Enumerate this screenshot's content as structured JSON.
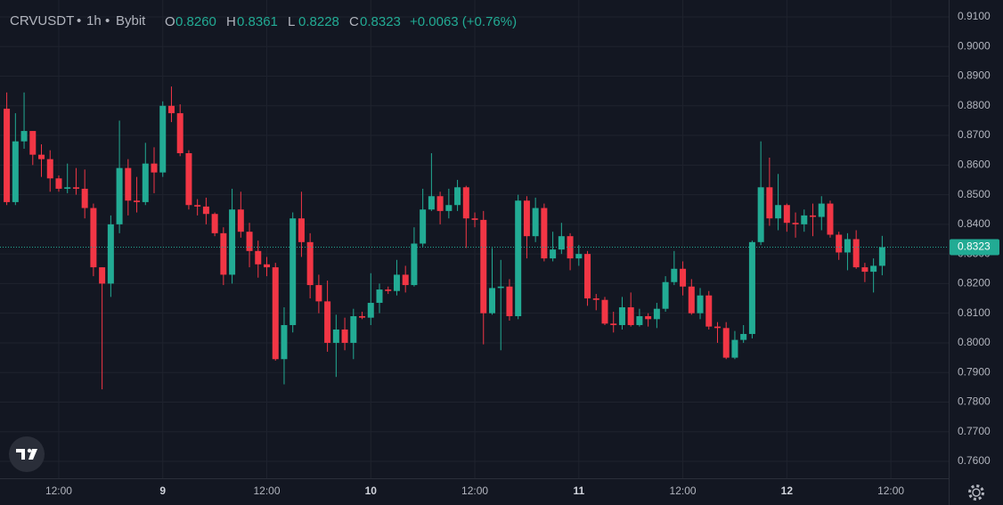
{
  "header": {
    "symbol": "CRVUSDT",
    "interval": "1h",
    "exchange": "Bybit",
    "ohlc": [
      {
        "key": "O",
        "value": "0.8260"
      },
      {
        "key": "H",
        "value": "0.8361"
      },
      {
        "key": "L",
        "value": "0.8228"
      },
      {
        "key": "C",
        "value": "0.8323"
      }
    ],
    "change": "+0.0063 (+0.76%)"
  },
  "chart_data": {
    "type": "candlestick",
    "x": [
      0,
      1,
      2,
      3,
      4,
      5,
      6,
      7,
      8,
      9,
      10,
      11,
      12,
      13,
      14,
      15,
      16,
      17,
      18,
      19,
      20,
      21,
      22,
      23,
      24,
      25,
      26,
      27,
      28,
      29,
      30,
      31,
      32,
      33,
      34,
      35,
      36,
      37,
      38,
      39,
      40,
      41,
      42,
      43,
      44,
      45,
      46,
      47,
      48,
      49,
      50,
      51,
      52,
      53,
      54,
      55,
      56,
      57,
      58,
      59,
      60,
      61,
      62,
      63,
      64,
      65,
      66,
      67,
      68,
      69,
      70,
      71,
      72,
      73,
      74,
      75,
      76,
      77,
      78,
      79,
      80,
      81,
      82,
      83,
      84,
      85,
      86,
      87,
      88,
      89,
      90,
      91,
      92,
      93,
      94,
      95,
      96,
      97,
      98,
      99,
      100,
      101
    ],
    "open": [
      0.879,
      0.8475,
      0.868,
      0.8715,
      0.8635,
      0.862,
      0.8555,
      0.852,
      0.8525,
      0.852,
      0.8455,
      0.8255,
      0.82,
      0.84,
      0.859,
      0.848,
      0.8475,
      0.8605,
      0.8575,
      0.88,
      0.8775,
      0.864,
      0.8465,
      0.846,
      0.8435,
      0.837,
      0.823,
      0.845,
      0.8375,
      0.831,
      0.8265,
      0.8255,
      0.7945,
      0.806,
      0.842,
      0.834,
      0.8195,
      0.814,
      0.8,
      0.8045,
      0.8,
      0.809,
      0.8085,
      0.8135,
      0.818,
      0.8175,
      0.823,
      0.8195,
      0.8335,
      0.845,
      0.8495,
      0.8445,
      0.8465,
      0.8525,
      0.842,
      0.8415,
      0.81,
      0.8185,
      0.819,
      0.809,
      0.848,
      0.836,
      0.8455,
      0.8285,
      0.8315,
      0.836,
      0.8285,
      0.83,
      0.815,
      0.8145,
      0.8065,
      0.806,
      0.812,
      0.806,
      0.809,
      0.808,
      0.8115,
      0.8205,
      0.825,
      0.819,
      0.81,
      0.816,
      0.8055,
      0.805,
      0.795,
      0.801,
      0.803,
      0.834,
      0.8525,
      0.842,
      0.8465,
      0.8405,
      0.84,
      0.843,
      0.8425,
      0.847,
      0.8365,
      0.8305,
      0.835,
      0.8255,
      0.824,
      0.826
    ],
    "high": [
      0.8845,
      0.8775,
      0.8845,
      0.8715,
      0.867,
      0.865,
      0.8565,
      0.8605,
      0.859,
      0.8585,
      0.847,
      0.8255,
      0.843,
      0.875,
      0.862,
      0.856,
      0.8675,
      0.866,
      0.8815,
      0.8865,
      0.8805,
      0.865,
      0.8485,
      0.849,
      0.844,
      0.839,
      0.852,
      0.851,
      0.8405,
      0.8345,
      0.829,
      0.827,
      0.812,
      0.844,
      0.851,
      0.837,
      0.823,
      0.821,
      0.8095,
      0.8085,
      0.8115,
      0.8105,
      0.8235,
      0.82,
      0.819,
      0.828,
      0.826,
      0.839,
      0.852,
      0.864,
      0.851,
      0.852,
      0.855,
      0.853,
      0.844,
      0.8445,
      0.832,
      0.828,
      0.8215,
      0.85,
      0.8495,
      0.849,
      0.847,
      0.8375,
      0.8405,
      0.837,
      0.833,
      0.831,
      0.8165,
      0.8155,
      0.8105,
      0.8155,
      0.817,
      0.8115,
      0.81,
      0.8135,
      0.8225,
      0.831,
      0.8275,
      0.8215,
      0.8185,
      0.8175,
      0.807,
      0.807,
      0.804,
      0.806,
      0.8345,
      0.868,
      0.8625,
      0.857,
      0.847,
      0.844,
      0.845,
      0.847,
      0.8495,
      0.848,
      0.8375,
      0.837,
      0.838,
      0.827,
      0.8285,
      0.8361
    ],
    "low": [
      0.8465,
      0.8465,
      0.8655,
      0.86,
      0.856,
      0.851,
      0.851,
      0.8505,
      0.85,
      0.842,
      0.8225,
      0.7843,
      0.8155,
      0.837,
      0.843,
      0.844,
      0.8465,
      0.8505,
      0.856,
      0.8745,
      0.863,
      0.845,
      0.843,
      0.84,
      0.836,
      0.8195,
      0.82,
      0.8355,
      0.8255,
      0.822,
      0.8225,
      0.794,
      0.786,
      0.8035,
      0.829,
      0.815,
      0.81,
      0.797,
      0.7885,
      0.7975,
      0.7945,
      0.808,
      0.806,
      0.81,
      0.8165,
      0.816,
      0.817,
      0.819,
      0.8325,
      0.8445,
      0.84,
      0.842,
      0.8445,
      0.832,
      0.839,
      0.7995,
      0.8095,
      0.7975,
      0.8075,
      0.808,
      0.8285,
      0.834,
      0.8275,
      0.8275,
      0.83,
      0.8245,
      0.826,
      0.8125,
      0.811,
      0.806,
      0.8035,
      0.8045,
      0.8055,
      0.8055,
      0.8055,
      0.805,
      0.8105,
      0.8195,
      0.816,
      0.8095,
      0.808,
      0.8045,
      0.8,
      0.7945,
      0.7945,
      0.8,
      0.8015,
      0.833,
      0.8395,
      0.838,
      0.8375,
      0.8355,
      0.8375,
      0.836,
      0.838,
      0.8355,
      0.828,
      0.8245,
      0.825,
      0.8205,
      0.817,
      0.8228
    ],
    "close": [
      0.8475,
      0.868,
      0.8715,
      0.8635,
      0.862,
      0.8555,
      0.852,
      0.8525,
      0.852,
      0.8455,
      0.8255,
      0.82,
      0.84,
      0.859,
      0.848,
      0.8475,
      0.8605,
      0.8575,
      0.88,
      0.8775,
      0.864,
      0.8465,
      0.846,
      0.8435,
      0.837,
      0.823,
      0.845,
      0.8375,
      0.831,
      0.8265,
      0.8255,
      0.7945,
      0.806,
      0.842,
      0.834,
      0.8195,
      0.814,
      0.8,
      0.8045,
      0.8,
      0.809,
      0.8085,
      0.8135,
      0.818,
      0.8175,
      0.823,
      0.8195,
      0.8335,
      0.845,
      0.8495,
      0.8445,
      0.8465,
      0.8525,
      0.842,
      0.8415,
      0.81,
      0.8185,
      0.819,
      0.809,
      0.848,
      0.836,
      0.8455,
      0.8285,
      0.8315,
      0.836,
      0.8285,
      0.83,
      0.815,
      0.8145,
      0.8065,
      0.806,
      0.812,
      0.806,
      0.809,
      0.808,
      0.8115,
      0.8205,
      0.825,
      0.819,
      0.81,
      0.816,
      0.8055,
      0.805,
      0.795,
      0.801,
      0.803,
      0.834,
      0.8525,
      0.842,
      0.8465,
      0.8405,
      0.84,
      0.843,
      0.8425,
      0.847,
      0.8365,
      0.8305,
      0.835,
      0.8255,
      0.824,
      0.826,
      0.8323
    ],
    "up_color": "#22ab94",
    "down_color": "#f23645",
    "xlim": [
      -0.78,
      108.67
    ],
    "ylim": [
      0.7543,
      0.9157
    ],
    "xticks": [
      {
        "value": 6,
        "label": "12:00"
      },
      {
        "value": 18,
        "label": "9"
      },
      {
        "value": 30,
        "label": "12:00"
      },
      {
        "value": 42,
        "label": "10"
      },
      {
        "value": 54,
        "label": "12:00"
      },
      {
        "value": 66,
        "label": "11"
      },
      {
        "value": 78,
        "label": "12:00"
      },
      {
        "value": 90,
        "label": "12"
      },
      {
        "value": 102,
        "label": "12:00"
      }
    ],
    "yticks": [
      {
        "value": 0.76,
        "label": "0.7600"
      },
      {
        "value": 0.77,
        "label": "0.7700"
      },
      {
        "value": 0.78,
        "label": "0.7800"
      },
      {
        "value": 0.79,
        "label": "0.7900"
      },
      {
        "value": 0.8,
        "label": "0.8000"
      },
      {
        "value": 0.81,
        "label": "0.8100"
      },
      {
        "value": 0.82,
        "label": "0.8200"
      },
      {
        "value": 0.83,
        "label": "0.8300"
      },
      {
        "value": 0.84,
        "label": "0.8400"
      },
      {
        "value": 0.85,
        "label": "0.8500"
      },
      {
        "value": 0.86,
        "label": "0.8600"
      },
      {
        "value": 0.87,
        "label": "0.8700"
      },
      {
        "value": 0.88,
        "label": "0.8800"
      },
      {
        "value": 0.89,
        "label": "0.8900"
      },
      {
        "value": 0.9,
        "label": "0.9000"
      },
      {
        "value": 0.91,
        "label": "0.9100"
      }
    ],
    "grid": true,
    "last_price": {
      "value": 0.8323,
      "label": "0.8323"
    }
  }
}
